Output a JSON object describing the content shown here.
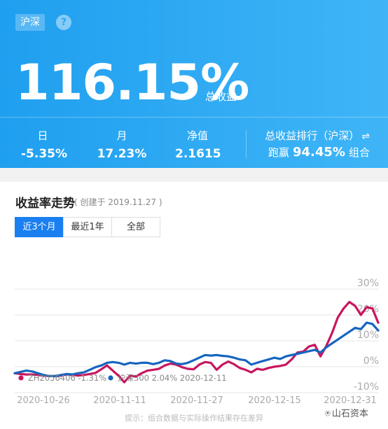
{
  "header": {
    "market_tag": "沪深",
    "help_icon": "?",
    "total_return": "116.15%",
    "total_return_label": "总收益",
    "stats": [
      {
        "label": "日",
        "value": "-5.35%"
      },
      {
        "label": "月",
        "value": "17.23%"
      },
      {
        "label": "净值",
        "value": "2.1615"
      }
    ],
    "ranking_label": "总收益排行（沪深）",
    "ranking_icon": "⇌",
    "ranking_prefix": "跑赢",
    "ranking_value": "94.45%",
    "ranking_suffix": "组合"
  },
  "card": {
    "title": "收益率走势",
    "subtitle": "( 创建于 2019.11.27 )",
    "tabs": [
      {
        "label": "近3个月",
        "active": true
      },
      {
        "label": "最近1年",
        "active": false
      },
      {
        "label": "全部",
        "active": false
      }
    ],
    "hint": "提示：组合数据与实际操作结果存在差异",
    "watermark": "山石资本",
    "watermark_icon": "⍟"
  },
  "chart_data": {
    "type": "line",
    "ylim": [
      -15,
      30
    ],
    "y_ticks": [
      "30%",
      "20%",
      "10%",
      "0%",
      "-10%"
    ],
    "y_tick_values": [
      30,
      20,
      10,
      0,
      -10
    ],
    "x_tick_labels": [
      "2020-10-26",
      "2020-11-11",
      "2020-11-27",
      "2020-12-15",
      "2020-12-31"
    ],
    "legend": [
      {
        "text": "ZH2056406 -1.31%",
        "color": "#c8155e"
      },
      {
        "text": "沪深300 2.04% 2020-12-11",
        "color": "#1565c0"
      }
    ],
    "series": [
      {
        "name": "ZH2056406",
        "color": "#c8155e",
        "values": [
          -2.5,
          -2.8,
          -3.0,
          -3.0,
          -3.2,
          -3.4,
          -3.6,
          -3.6,
          -3.4,
          -3.0,
          -3.2,
          -3.4,
          -3.2,
          -2.8,
          -2.4,
          -1.0,
          0.5,
          -1.5,
          -3.5,
          -6.0,
          -3.5,
          -3.8,
          -2.5,
          -1.5,
          -1.2,
          -0.8,
          0.5,
          1.2,
          0.8,
          -0.2,
          -0.8,
          -1.0,
          0.8,
          1.8,
          1.5,
          -1.2,
          0.8,
          2.0,
          1.0,
          -0.5,
          -1.2,
          -2.2,
          -0.8,
          -1.2,
          -0.5,
          0.0,
          0.3,
          0.8,
          2.8,
          5.5,
          5.8,
          7.8,
          8.5,
          4.0,
          8.0,
          13.0,
          19.0,
          22.5,
          25.0,
          23.5,
          20.0,
          23.0,
          22.5,
          17.0
        ]
      },
      {
        "name": "沪深300",
        "color": "#1565c0",
        "values": [
          -2.5,
          -2.0,
          -1.5,
          -1.8,
          -2.5,
          -3.2,
          -3.6,
          -3.6,
          -3.2,
          -2.8,
          -3.0,
          -2.5,
          -2.2,
          -1.2,
          -0.2,
          0.5,
          1.5,
          1.8,
          1.5,
          0.8,
          1.5,
          1.2,
          1.5,
          1.5,
          1.0,
          1.5,
          2.5,
          2.2,
          1.2,
          1.0,
          1.5,
          2.5,
          3.5,
          4.5,
          4.3,
          4.5,
          4.2,
          4.0,
          3.5,
          2.8,
          2.5,
          0.8,
          1.5,
          2.2,
          2.8,
          3.5,
          3.0,
          4.0,
          4.5,
          5.0,
          5.5,
          6.0,
          6.5,
          5.5,
          7.5,
          9.0,
          10.5,
          12.0,
          13.5,
          15.0,
          14.5,
          17.0,
          16.5,
          14.0
        ]
      }
    ]
  }
}
